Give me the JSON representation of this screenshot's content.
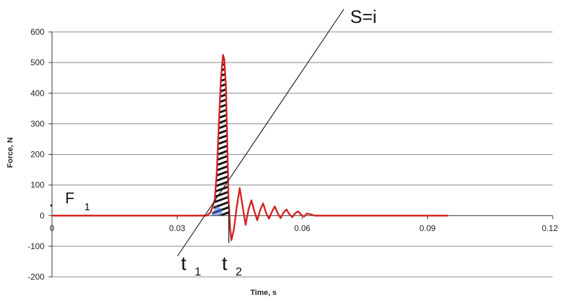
{
  "chart_data": {
    "type": "line",
    "title": "",
    "xlabel": "Time, s",
    "ylabel": "Force, N",
    "xlim": [
      0,
      0.12
    ],
    "ylim": [
      -200,
      600
    ],
    "x_ticks": [
      0,
      0.03,
      0.06,
      0.09,
      0.12
    ],
    "x_tick_labels": [
      "0",
      "0.03",
      "0.06",
      "0.09",
      "0.12"
    ],
    "y_ticks": [
      -200,
      -100,
      0,
      100,
      200,
      300,
      400,
      500,
      600
    ],
    "y_tick_labels": [
      "-200",
      "-100",
      "0",
      "100",
      "200",
      "300",
      "400",
      "500",
      "600"
    ],
    "grid": "horizontal",
    "series": [
      {
        "color": "#d42020",
        "x": [
          0,
          0.037,
          0.038,
          0.039,
          0.0395,
          0.04,
          0.0405,
          0.041,
          0.0413,
          0.0417,
          0.042,
          0.0423,
          0.0427,
          0.043,
          0.0436,
          0.0443,
          0.045,
          0.0457,
          0.0464,
          0.0471,
          0.0478,
          0.0485,
          0.0492,
          0.0499,
          0.0506,
          0.0513,
          0.052,
          0.0527,
          0.0534,
          0.0541,
          0.0548,
          0.0555,
          0.0562,
          0.0569,
          0.0576,
          0.0583,
          0.059,
          0.0597,
          0.0604,
          0.0611,
          0.0618,
          0.063,
          0.095
        ],
        "values": [
          0,
          0,
          10,
          50,
          140,
          300,
          450,
          525,
          510,
          420,
          250,
          60,
          -40,
          -80,
          -45,
          30,
          90,
          30,
          -30,
          20,
          50,
          15,
          -15,
          18,
          40,
          10,
          -10,
          12,
          30,
          8,
          -8,
          10,
          20,
          5,
          -5,
          8,
          14,
          3,
          -3,
          7,
          5,
          0,
          0
        ]
      }
    ],
    "impulse_region": {
      "t_start": 0.0383,
      "t_end": 0.0423,
      "fill": "hatched"
    },
    "annotations": {
      "s_label": "S=i",
      "t1_label": "t",
      "t1_sub": "1",
      "t2_label": "t",
      "t2_sub": "2",
      "f1_label": "F",
      "f1_sub": "1"
    },
    "colors": {
      "series": "#d42020",
      "hatch": "#111111",
      "impulse_base": "#3b6fd8",
      "gridline": "#888888"
    }
  }
}
